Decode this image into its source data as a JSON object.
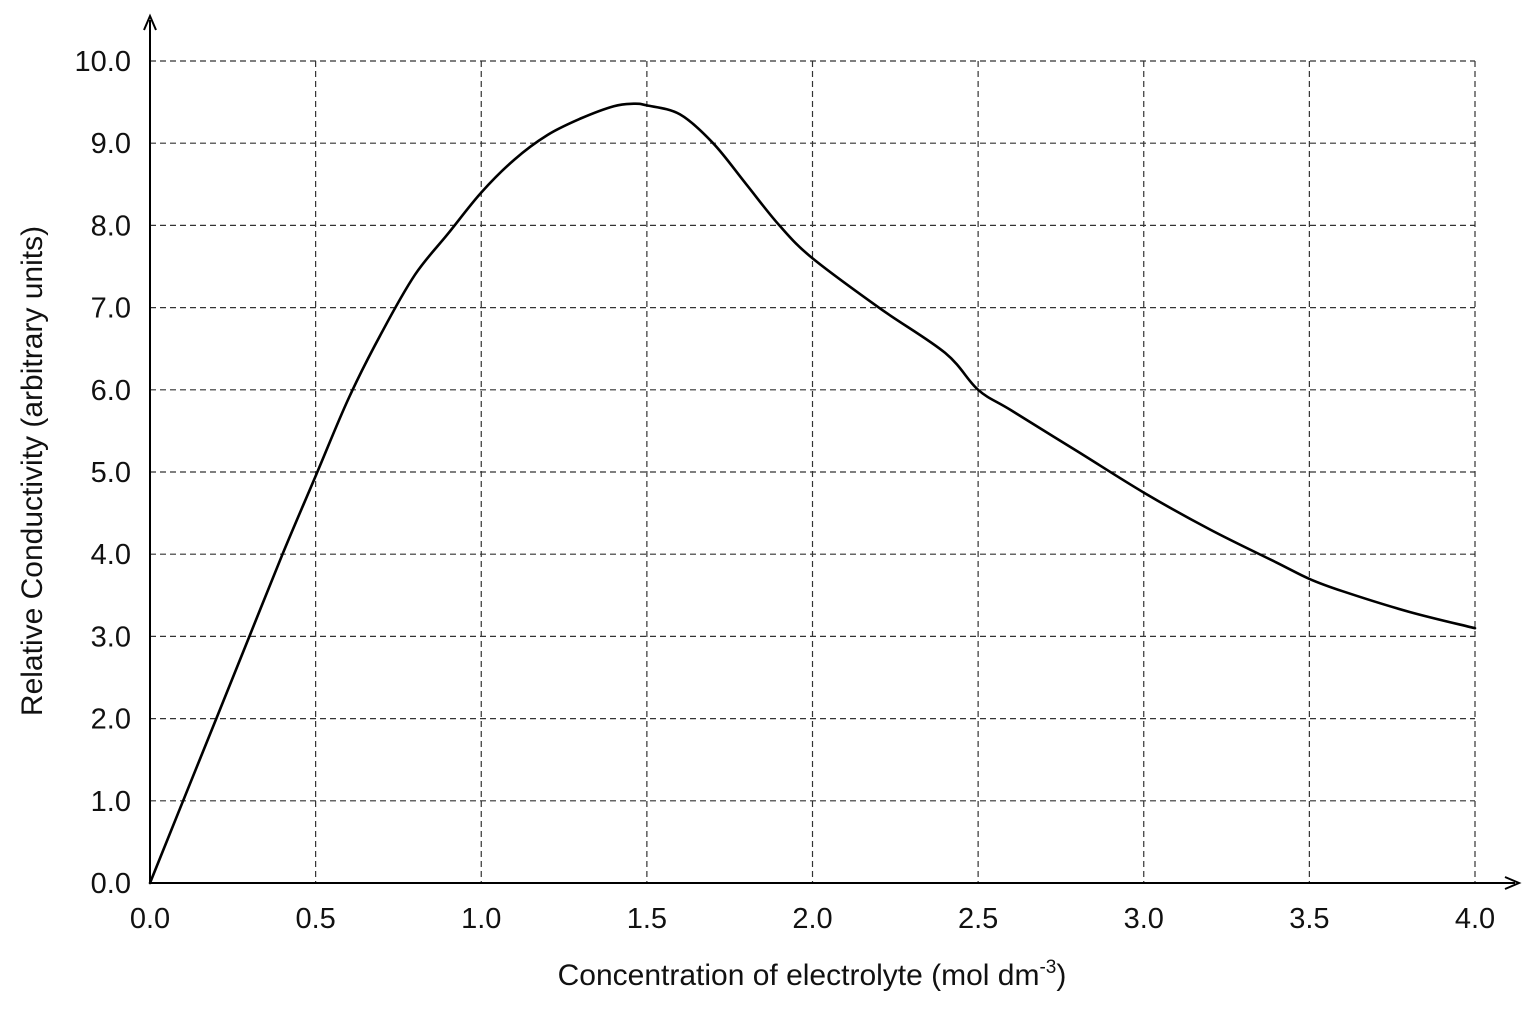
{
  "chart_data": {
    "type": "line",
    "title": "",
    "xlabel": "Concentration of electrolyte (mol dm",
    "xlabel_superscript": "-3",
    "xlabel_suffix": ")",
    "ylabel": "Relative Conductivity (arbitrary units)",
    "xlim": [
      0.0,
      4.0
    ],
    "ylim": [
      0.0,
      10.0
    ],
    "grid": true,
    "x_ticks": [
      "0.0",
      "0.5",
      "1.0",
      "1.5",
      "2.0",
      "2.5",
      "3.0",
      "3.5",
      "4.0"
    ],
    "y_ticks": [
      "0.0",
      "1.0",
      "2.0",
      "3.0",
      "4.0",
      "5.0",
      "6.0",
      "7.0",
      "8.0",
      "9.0",
      "10.0"
    ],
    "series": [
      {
        "x": [
          0.0,
          0.1,
          0.2,
          0.3,
          0.4,
          0.5,
          0.6,
          0.7,
          0.8,
          0.9,
          1.0,
          1.1,
          1.2,
          1.3,
          1.4,
          1.46,
          1.5,
          1.6,
          1.7,
          1.8,
          1.9,
          2.0,
          2.2,
          2.4,
          2.5,
          2.6,
          2.8,
          3.0,
          3.2,
          3.4,
          3.5,
          3.6,
          3.8,
          4.0
        ],
        "y": [
          0.0,
          1.0,
          2.0,
          3.0,
          4.0,
          4.95,
          5.9,
          6.7,
          7.4,
          7.9,
          8.4,
          8.8,
          9.1,
          9.3,
          9.45,
          9.48,
          9.46,
          9.35,
          9.0,
          8.5,
          8.0,
          7.6,
          7.0,
          6.45,
          6.0,
          5.75,
          5.25,
          4.75,
          4.3,
          3.9,
          3.7,
          3.55,
          3.3,
          3.1
        ]
      }
    ]
  }
}
